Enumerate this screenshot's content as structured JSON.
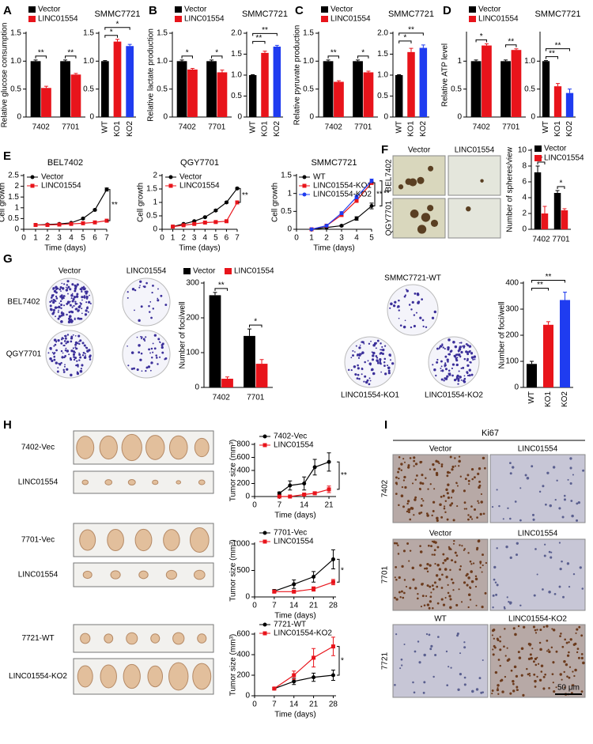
{
  "panel_letters": [
    "A",
    "B",
    "C",
    "D",
    "E",
    "F",
    "G",
    "H",
    "I"
  ],
  "chart_data": [
    {
      "type": "bar",
      "ylabel": "Relative glucose consumption",
      "categories": [
        "7402",
        "7701"
      ],
      "series": [
        {
          "name": "Vector",
          "color": "#000000",
          "values": [
            1,
            1
          ],
          "errors": [
            0.02,
            0.02
          ]
        },
        {
          "name": "LINC01554",
          "color": "#e8141b",
          "values": [
            0.52,
            0.76
          ],
          "errors": [
            0.03,
            0.02
          ]
        }
      ],
      "ylim": [
        0,
        1.5
      ],
      "yticks": [
        0,
        0.5,
        {
          "value": 1,
          "label": "1.0"
        },
        1.5
      ],
      "annotations": [
        "**",
        "**"
      ]
    },
    {
      "type": "bar",
      "title": "SMMC7721",
      "categories": [
        "WT",
        "KO1",
        "KO2"
      ],
      "values": [
        1,
        1.35,
        1.27
      ],
      "errors": [
        0.01,
        0.04,
        0.03
      ],
      "colors": [
        "#000000",
        "#e8141b",
        "#1f3cf0"
      ],
      "ylim": [
        0,
        1.5
      ],
      "yticks": [
        0,
        0.5,
        {
          "value": 1,
          "label": "1.0"
        },
        1.5
      ],
      "annotations": [
        "*",
        "*"
      ]
    },
    {
      "type": "bar",
      "ylabel": "Relative lactate production",
      "categories": [
        "7402",
        "7701"
      ],
      "series": [
        {
          "name": "Vector",
          "color": "#000000",
          "values": [
            1,
            1
          ],
          "errors": [
            0.02,
            0.02
          ]
        },
        {
          "name": "LINC01554",
          "color": "#e8141b",
          "values": [
            0.85,
            0.8
          ],
          "errors": [
            0.02,
            0.04
          ]
        }
      ],
      "ylim": [
        0,
        1.5
      ],
      "yticks": [
        0,
        0.5,
        {
          "value": 1,
          "label": "1.0"
        },
        1.5
      ],
      "annotations": [
        "*",
        "*"
      ]
    },
    {
      "type": "bar",
      "title": "SMMC7721",
      "categories": [
        "WT",
        "KO1",
        "KO2"
      ],
      "values": [
        1,
        1.53,
        1.68
      ],
      "errors": [
        0.01,
        0.04,
        0.03
      ],
      "colors": [
        "#000000",
        "#e8141b",
        "#1f3cf0"
      ],
      "ylim": [
        0,
        2
      ],
      "yticks": [
        0,
        0.5,
        {
          "value": 1,
          "label": "1.0"
        },
        1.5,
        {
          "value": 2,
          "label": "2.0"
        }
      ],
      "annotations": [
        "**",
        "**"
      ]
    },
    {
      "type": "bar",
      "ylabel": "Relative pyruvate production",
      "categories": [
        "7402",
        "7701"
      ],
      "series": [
        {
          "name": "Vector",
          "color": "#000000",
          "values": [
            1,
            1
          ],
          "errors": [
            0.02,
            0.02
          ]
        },
        {
          "name": "LINC01554",
          "color": "#e8141b",
          "values": [
            0.63,
            0.8
          ],
          "errors": [
            0.02,
            0.02
          ]
        }
      ],
      "ylim": [
        0,
        1.5
      ],
      "yticks": [
        0,
        0.5,
        {
          "value": 1,
          "label": "1.0"
        },
        1.5
      ],
      "annotations": [
        "**",
        "*"
      ]
    },
    {
      "type": "bar",
      "title": "SMMC7721",
      "categories": [
        "WT",
        "KO1",
        "KO2"
      ],
      "values": [
        1,
        1.55,
        1.65
      ],
      "errors": [
        0.01,
        0.09,
        0.07
      ],
      "colors": [
        "#000000",
        "#e8141b",
        "#1f3cf0"
      ],
      "ylim": [
        0,
        2
      ],
      "yticks": [
        0,
        0.5,
        {
          "value": 1,
          "label": "1.0"
        },
        1.5,
        {
          "value": 2,
          "label": "2.0"
        }
      ],
      "annotations": [
        "*",
        "**"
      ]
    },
    {
      "type": "bar",
      "ylabel": "Relative ATP level",
      "categories": [
        "7402",
        "7701"
      ],
      "series": [
        {
          "name": "Vector",
          "color": "#000000",
          "values": [
            1,
            1
          ],
          "errors": [
            0.02,
            0.02
          ]
        },
        {
          "name": "LINC01554",
          "color": "#e8141b",
          "values": [
            1.28,
            1.2
          ],
          "errors": [
            0.03,
            0.02
          ]
        }
      ],
      "ylim": [
        0,
        1.5
      ],
      "yticks": [
        0,
        0.5,
        1
      ],
      "annotations": [
        "*",
        "**"
      ]
    },
    {
      "type": "bar",
      "title": "SMMC7721",
      "categories": [
        "WT",
        "KO1",
        "KO2"
      ],
      "values": [
        1,
        0.55,
        0.43
      ],
      "errors": [
        0.01,
        0.05,
        0.07
      ],
      "colors": [
        "#000000",
        "#e8141b",
        "#1f3cf0"
      ],
      "ylim": [
        0,
        1.5
      ],
      "yticks": [
        0,
        0.5,
        {
          "value": 1,
          "label": "1.0"
        }
      ],
      "annotations": [
        "**",
        "**"
      ]
    },
    {
      "type": "line",
      "title": "BEL7402",
      "xlabel": "Time (days)",
      "ylabel": "Cell growth",
      "x": [
        1,
        2,
        3,
        4,
        5,
        6,
        7
      ],
      "series": [
        {
          "name": "Vector",
          "color": "#000000",
          "marker": "circle",
          "values": [
            0.2,
            0.22,
            0.25,
            0.3,
            0.5,
            0.9,
            1.85
          ],
          "errors": [
            0.01,
            0.01,
            0.01,
            0.02,
            0.03,
            0.04,
            0.07
          ]
        },
        {
          "name": "LINC01554",
          "color": "#e8141b",
          "marker": "square",
          "values": [
            0.2,
            0.2,
            0.22,
            0.25,
            0.28,
            0.32,
            0.4
          ],
          "errors": [
            0.01,
            0.01,
            0.01,
            0.01,
            0.02,
            0.02,
            0.03
          ]
        }
      ],
      "xlim": [
        0,
        7
      ],
      "xticks": [
        0,
        1,
        2,
        3,
        4,
        5,
        6,
        7
      ],
      "ylim": [
        0,
        2.5
      ],
      "yticks": [
        0,
        0.5,
        1,
        1.5,
        2,
        2.5
      ],
      "annotations": [
        "**"
      ]
    },
    {
      "type": "line",
      "title": "QGY7701",
      "xlabel": "Time (days)",
      "ylabel": "Cell growth",
      "x": [
        1,
        2,
        3,
        4,
        5,
        6,
        7
      ],
      "series": [
        {
          "name": "Vector",
          "color": "#000000",
          "marker": "circle",
          "values": [
            0.1,
            0.2,
            0.3,
            0.45,
            0.7,
            1.0,
            1.52
          ],
          "errors": [
            0.01,
            0.01,
            0.02,
            0.02,
            0.03,
            0.03,
            0.03
          ]
        },
        {
          "name": "LINC01554",
          "color": "#e8141b",
          "marker": "square",
          "values": [
            0.1,
            0.15,
            0.2,
            0.25,
            0.27,
            0.3,
            1.0
          ],
          "errors": [
            0.01,
            0.01,
            0.01,
            0.01,
            0.02,
            0.02,
            0.03
          ]
        }
      ],
      "xlim": [
        0,
        7
      ],
      "xticks": [
        0,
        1,
        2,
        3,
        4,
        5,
        6,
        7
      ],
      "ylim": [
        0,
        2
      ],
      "yticks": [
        0,
        0.5,
        1,
        1.5,
        2
      ],
      "annotations": [
        "**"
      ]
    },
    {
      "type": "line",
      "title": "SMMC7721",
      "xlabel": "Time (days)",
      "ylabel": "Cell growth",
      "x": [
        1,
        2,
        3,
        4,
        5
      ],
      "series": [
        {
          "name": "WT",
          "color": "#000000",
          "marker": "circle",
          "values": [
            0,
            0.05,
            0.1,
            0.3,
            0.65
          ],
          "errors": [
            0.01,
            0.01,
            0.02,
            0.05,
            0.08
          ]
        },
        {
          "name": "LINC01554-KO1",
          "color": "#e8141b",
          "marker": "square",
          "values": [
            0,
            0.1,
            0.4,
            0.8,
            1.3
          ],
          "errors": [
            0.01,
            0.02,
            0.04,
            0.05,
            0.05
          ]
        },
        {
          "name": "LINC01554-KO2",
          "color": "#1f3cf0",
          "marker": "circle",
          "values": [
            0,
            0.1,
            0.45,
            0.9,
            1.35
          ],
          "errors": [
            0.01,
            0.02,
            0.04,
            0.05,
            0.05
          ]
        }
      ],
      "xlim": [
        0,
        5
      ],
      "xticks": [
        0,
        1,
        2,
        3,
        4,
        5
      ],
      "ylim": [
        0,
        1.5
      ],
      "yticks": [
        0,
        0.5,
        1,
        1.5
      ],
      "annotations": [
        "**",
        "**"
      ]
    },
    {
      "type": "bar",
      "ylabel": "Number of spheres/view",
      "categories": [
        "7402",
        "7701"
      ],
      "series": [
        {
          "name": "Vector",
          "color": "#000000",
          "values": [
            7.2,
            4.6
          ],
          "errors": [
            0.8,
            0.3
          ]
        },
        {
          "name": "LINC01554",
          "color": "#e8141b",
          "values": [
            2.0,
            2.4
          ],
          "errors": [
            0.9,
            0.2
          ]
        }
      ],
      "ylim": [
        0,
        10
      ],
      "yticks": [
        0,
        2,
        4,
        6,
        8,
        10
      ],
      "annotations": [
        "*",
        "*"
      ]
    },
    {
      "type": "bar",
      "ylabel": "Number of foci/well",
      "categories": [
        "7402",
        "7701"
      ],
      "series": [
        {
          "name": "Vector",
          "color": "#000000",
          "values": [
            265,
            148
          ],
          "errors": [
            8,
            20
          ]
        },
        {
          "name": "LINC01554",
          "color": "#e8141b",
          "values": [
            25,
            68
          ],
          "errors": [
            5,
            12
          ]
        }
      ],
      "ylim": [
        0,
        300
      ],
      "yticks": [
        0,
        100,
        200,
        300
      ],
      "annotations": [
        "**",
        "*"
      ]
    },
    {
      "type": "bar",
      "ylabel": "Number of foci/well",
      "categories": [
        "WT",
        "KO1",
        "KO2"
      ],
      "values": [
        90,
        240,
        335
      ],
      "errors": [
        10,
        12,
        30
      ],
      "colors": [
        "#000000",
        "#e8141b",
        "#1f3cf0"
      ],
      "ylim": [
        0,
        400
      ],
      "yticks": [
        0,
        100,
        200,
        300,
        400
      ],
      "annotations": [
        "**",
        "**"
      ]
    },
    {
      "type": "line",
      "xlabel": "Time (days)",
      "ylabel": "Tumor size (mm³)",
      "x": [
        7,
        10,
        14,
        17,
        21
      ],
      "series": [
        {
          "name": "7402-Vec",
          "color": "#000000",
          "marker": "circle",
          "values": [
            50,
            170,
            200,
            450,
            530
          ],
          "errors": [
            20,
            70,
            100,
            120,
            140
          ]
        },
        {
          "name": "LINC01554",
          "color": "#e8141b",
          "marker": "square",
          "values": [
            0,
            0,
            30,
            50,
            110
          ],
          "errors": [
            5,
            5,
            15,
            20,
            50
          ]
        }
      ],
      "xlim": [
        0,
        23
      ],
      "xticks": [
        0,
        7,
        14,
        21
      ],
      "ylim": [
        0,
        800
      ],
      "yticks": [
        0,
        200,
        400,
        600,
        800
      ],
      "annotations": [
        "**"
      ]
    },
    {
      "type": "line",
      "xlabel": "Time (days)",
      "ylabel": "Tumor size (mm³)",
      "x": [
        7,
        14,
        21,
        28
      ],
      "series": [
        {
          "name": "7701-Vec",
          "color": "#000000",
          "marker": "circle",
          "values": [
            110,
            240,
            380,
            710
          ],
          "errors": [
            30,
            80,
            100,
            180
          ]
        },
        {
          "name": "LINC01554",
          "color": "#e8141b",
          "marker": "square",
          "values": [
            100,
            100,
            150,
            280
          ],
          "errors": [
            20,
            20,
            40,
            50
          ]
        }
      ],
      "xlim": [
        0,
        29
      ],
      "xticks": [
        0,
        7,
        14,
        21,
        28
      ],
      "ylim": [
        0,
        1000
      ],
      "yticks": [
        0,
        500,
        1000
      ],
      "annotations": [
        "*"
      ]
    },
    {
      "type": "line",
      "xlabel": "Time (days)",
      "ylabel": "Tumor size (mm³)",
      "x": [
        7,
        14,
        21,
        28
      ],
      "series": [
        {
          "name": "7721-WT",
          "color": "#000000",
          "marker": "circle",
          "values": [
            70,
            140,
            180,
            200
          ],
          "errors": [
            10,
            30,
            40,
            50
          ]
        },
        {
          "name": "LINC01554-KO2",
          "color": "#e8141b",
          "marker": "square",
          "values": [
            70,
            200,
            370,
            480
          ],
          "errors": [
            10,
            40,
            90,
            90
          ]
        }
      ],
      "xlim": [
        0,
        29
      ],
      "xticks": [
        0,
        7,
        14,
        21,
        28
      ],
      "ylim": [
        0,
        600
      ],
      "yticks": [
        0,
        200,
        400,
        600
      ],
      "annotations": [
        "*"
      ]
    }
  ],
  "image_panels": [
    {
      "texts": [
        "Vector",
        "LINC01554",
        "BEL7402",
        "QGY7701"
      ]
    },
    {
      "texts": [
        "Vector",
        "LINC01554",
        "BEL7402",
        "QGY7701"
      ]
    },
    {
      "texts": [
        "SMMC7721-WT",
        "LINC01554-KO1",
        "LINC01554-KO2"
      ]
    },
    {
      "texts": [
        "7402-Vec",
        "LINC01554",
        "7701-Vec",
        "LINC01554",
        "7721-WT",
        "LINC01554-KO2"
      ]
    },
    {
      "title": "Ki67",
      "texts": [
        "Vector",
        "LINC01554",
        "Vector",
        "LINC01554",
        "WT",
        "LINC01554-KO2"
      ],
      "rows": [
        "7402",
        "7701",
        "7721"
      ],
      "scale_bar": "50 μm"
    }
  ]
}
